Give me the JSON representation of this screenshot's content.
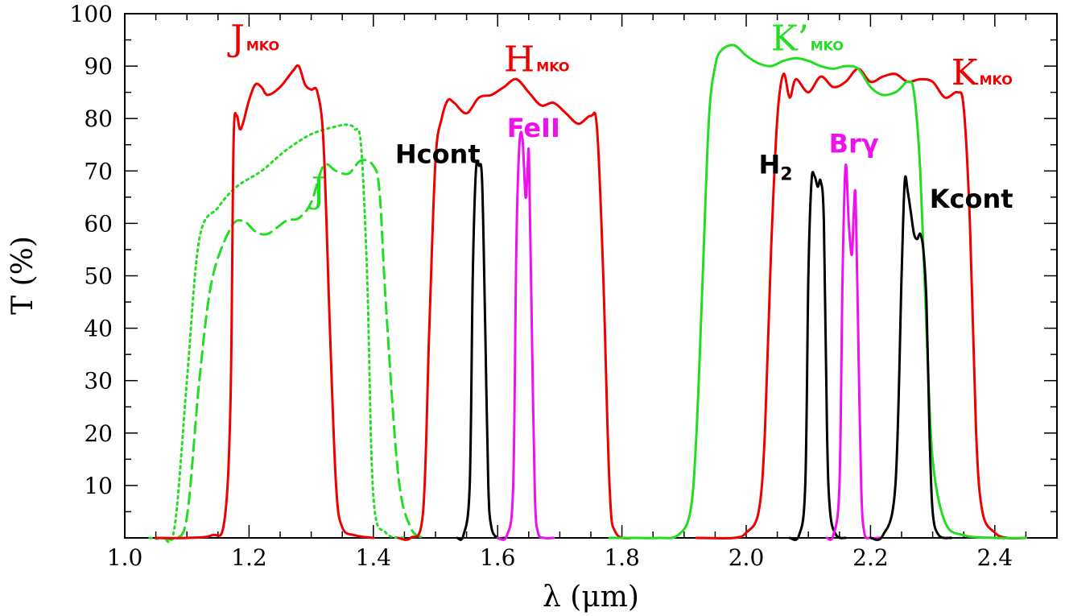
{
  "chart_data": {
    "type": "line",
    "title": "",
    "xlabel": "λ (μm)",
    "ylabel": "T (%)",
    "xlim": [
      1.0,
      2.5
    ],
    "ylim": [
      0,
      100
    ],
    "xticks": [
      "1.0",
      "1.2",
      "1.4",
      "1.6",
      "1.8",
      "2.0",
      "2.2",
      "2.4"
    ],
    "yticks": [
      "10",
      "20",
      "30",
      "40",
      "50",
      "60",
      "70",
      "80",
      "90",
      "100"
    ],
    "grid": false,
    "colors": {
      "red": "#ee0000",
      "green": "#22dd22",
      "magenta": "#ee11ee",
      "black": "#000000"
    },
    "series": [
      {
        "name": "J",
        "color": "#22dd22",
        "style": "dotted",
        "x": [
          1.04,
          1.06,
          1.08,
          1.1,
          1.12,
          1.15,
          1.18,
          1.22,
          1.26,
          1.3,
          1.34,
          1.36,
          1.37,
          1.38,
          1.39,
          1.4,
          1.42,
          1.45
        ],
        "y": [
          0,
          0,
          2,
          30,
          57,
          63,
          67,
          70,
          74,
          77,
          78.5,
          78.8,
          78,
          75,
          50,
          8,
          1,
          0
        ]
      },
      {
        "name": "J",
        "color": "#22dd22",
        "style": "dashed",
        "x": [
          1.06,
          1.08,
          1.1,
          1.12,
          1.14,
          1.17,
          1.19,
          1.21,
          1.23,
          1.26,
          1.28,
          1.3,
          1.32,
          1.34,
          1.36,
          1.38,
          1.4,
          1.41,
          1.42,
          1.44,
          1.46,
          1.48
        ],
        "y": [
          0,
          0,
          4,
          30,
          49,
          59,
          60.5,
          58.5,
          58,
          60.5,
          61,
          64,
          71,
          70,
          69.5,
          72,
          71,
          66,
          45,
          12,
          2,
          0
        ]
      },
      {
        "name": "J_MKO",
        "color": "#ee0000",
        "style": "solid",
        "x": [
          1.05,
          1.1,
          1.14,
          1.16,
          1.17,
          1.175,
          1.18,
          1.185,
          1.19,
          1.2,
          1.21,
          1.22,
          1.23,
          1.25,
          1.27,
          1.28,
          1.29,
          1.3,
          1.31,
          1.32,
          1.33,
          1.34,
          1.35,
          1.37,
          1.4
        ],
        "y": [
          0,
          0,
          0.5,
          3,
          25,
          75,
          80.5,
          78,
          79,
          83.5,
          86.5,
          86,
          84.5,
          86,
          89,
          90,
          86.5,
          85.5,
          85,
          75,
          40,
          10,
          2,
          0.5,
          0
        ]
      },
      {
        "name": "H_MKO",
        "color": "#ee0000",
        "style": "solid",
        "x": [
          1.44,
          1.46,
          1.48,
          1.49,
          1.5,
          1.51,
          1.52,
          1.53,
          1.55,
          1.57,
          1.59,
          1.61,
          1.63,
          1.65,
          1.67,
          1.69,
          1.71,
          1.73,
          1.75,
          1.76,
          1.77,
          1.78,
          1.79,
          1.82
        ],
        "y": [
          0,
          0,
          5,
          40,
          72,
          80,
          83.5,
          83,
          81,
          84,
          84.5,
          86,
          87.5,
          85,
          82.5,
          83,
          81,
          79,
          80.5,
          78,
          50,
          10,
          1,
          0
        ]
      },
      {
        "name": "K_MKO",
        "color": "#ee0000",
        "style": "solid",
        "x": [
          1.92,
          1.98,
          2.0,
          2.02,
          2.03,
          2.04,
          2.05,
          2.06,
          2.07,
          2.08,
          2.1,
          2.12,
          2.14,
          2.16,
          2.18,
          2.2,
          2.22,
          2.24,
          2.26,
          2.28,
          2.3,
          2.32,
          2.34,
          2.35,
          2.36,
          2.37,
          2.38,
          2.4,
          2.42,
          2.45
        ],
        "y": [
          0,
          0,
          1,
          5,
          20,
          55,
          80,
          88.5,
          84,
          87.5,
          85,
          88,
          86,
          87,
          89.5,
          87,
          88,
          88.5,
          87,
          87.5,
          87,
          84,
          85,
          82,
          60,
          20,
          5,
          1,
          0,
          0
        ]
      },
      {
        "name": "K'_MKO",
        "color": "#22dd22",
        "style": "solid",
        "x": [
          1.78,
          1.82,
          1.86,
          1.89,
          1.91,
          1.92,
          1.93,
          1.94,
          1.95,
          1.96,
          1.98,
          2.0,
          2.02,
          2.04,
          2.06,
          2.08,
          2.1,
          2.12,
          2.14,
          2.16,
          2.18,
          2.2,
          2.22,
          2.24,
          2.25,
          2.26,
          2.27,
          2.28,
          2.29,
          2.3,
          2.32,
          2.35,
          2.4,
          2.45
        ],
        "y": [
          0,
          0,
          0,
          0.5,
          5,
          20,
          50,
          80,
          90,
          93,
          94,
          92,
          90.5,
          90,
          91,
          91.5,
          91,
          90,
          89.5,
          90,
          89.5,
          86,
          84.5,
          85,
          86,
          87,
          85,
          70,
          40,
          15,
          3,
          0.5,
          0,
          0
        ]
      },
      {
        "name": "Hcont",
        "color": "#000000",
        "style": "solid",
        "x": [
          1.535,
          1.545,
          1.555,
          1.56,
          1.565,
          1.57,
          1.575,
          1.58,
          1.585,
          1.59,
          1.6,
          1.61
        ],
        "y": [
          0,
          0.5,
          10,
          50,
          70,
          71,
          68,
          40,
          10,
          2,
          0,
          0
        ]
      },
      {
        "name": "FeII",
        "color": "#ee11ee",
        "style": "solid",
        "x": [
          1.6,
          1.615,
          1.625,
          1.63,
          1.635,
          1.64,
          1.645,
          1.648,
          1.65,
          1.652,
          1.655,
          1.66,
          1.665,
          1.675,
          1.69
        ],
        "y": [
          0,
          0.5,
          10,
          55,
          75,
          76,
          65,
          70,
          74,
          62,
          40,
          8,
          1,
          0,
          0
        ]
      },
      {
        "name": "H2",
        "color": "#000000",
        "style": "solid",
        "x": [
          2.07,
          2.085,
          2.095,
          2.1,
          2.105,
          2.11,
          2.115,
          2.12,
          2.125,
          2.13,
          2.135,
          2.145,
          2.16
        ],
        "y": [
          0,
          0.5,
          10,
          50,
          68,
          69,
          67,
          68,
          60,
          20,
          5,
          0.5,
          0
        ]
      },
      {
        "name": "Brγ",
        "color": "#ee11ee",
        "style": "solid",
        "x": [
          2.13,
          2.14,
          2.15,
          2.155,
          2.16,
          2.165,
          2.17,
          2.173,
          2.176,
          2.18,
          2.185,
          2.19,
          2.2,
          2.215
        ],
        "y": [
          0,
          0.5,
          10,
          50,
          71,
          60,
          54,
          62,
          65,
          40,
          10,
          1,
          0,
          0
        ]
      },
      {
        "name": "Kcont",
        "color": "#000000",
        "style": "solid",
        "x": [
          2.2,
          2.22,
          2.24,
          2.25,
          2.255,
          2.26,
          2.265,
          2.27,
          2.275,
          2.28,
          2.285,
          2.29,
          2.295,
          2.3,
          2.31,
          2.33
        ],
        "y": [
          0,
          0.5,
          10,
          50,
          68,
          66,
          62,
          58,
          57,
          58,
          55,
          45,
          20,
          5,
          0.5,
          0
        ]
      }
    ],
    "annotations": [
      {
        "id": "jmko",
        "main": "J",
        "sub": "MKO",
        "color": "#ee0000",
        "x": 1.17,
        "y": 93
      },
      {
        "id": "hmko",
        "main": "H",
        "sub": "MKO",
        "color": "#ee0000",
        "x": 1.61,
        "y": 89
      },
      {
        "id": "kpmko",
        "main": "K’",
        "sub": "MKO",
        "color": "#22dd22",
        "x": 2.04,
        "y": 93
      },
      {
        "id": "kmko",
        "main": "K",
        "sub": "MKO",
        "color": "#ee0000",
        "x": 2.33,
        "y": 86.5
      },
      {
        "id": "j",
        "main": "J",
        "sub": "",
        "color": "#22dd22",
        "x": 1.3,
        "y": 64
      },
      {
        "id": "hcont",
        "main": "Hcont",
        "sub": "",
        "color": "#000000",
        "x": 1.435,
        "y": 71.5
      },
      {
        "id": "feii",
        "main": "FeII",
        "sub": "",
        "color": "#ee11ee",
        "x": 1.615,
        "y": 76.5
      },
      {
        "id": "h2",
        "main": "H",
        "sub": "2",
        "color": "#000000",
        "x": 2.02,
        "y": 69.5
      },
      {
        "id": "brg",
        "main": "Brγ",
        "sub": "",
        "color": "#ee11ee",
        "x": 2.133,
        "y": 73.5
      },
      {
        "id": "kcont",
        "main": "Kcont",
        "sub": "",
        "color": "#000000",
        "x": 2.295,
        "y": 63
      }
    ]
  }
}
